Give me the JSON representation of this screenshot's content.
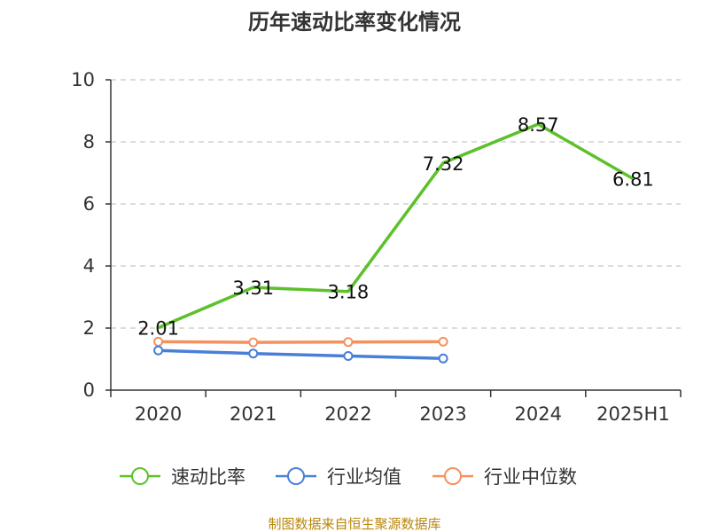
{
  "chart_data": {
    "type": "line",
    "title": "历年速动比率变化情况",
    "categories": [
      "2020",
      "2021",
      "2022",
      "2023",
      "2024",
      "2025H1"
    ],
    "ylim": [
      0,
      10
    ],
    "yticks": [
      0,
      2,
      4,
      6,
      8,
      10
    ],
    "grid": "horizontal-dashed",
    "legend_position": "bottom",
    "series": [
      {
        "name": "速动比率",
        "color": "#5cc12b",
        "values": [
          2.01,
          3.31,
          3.18,
          7.32,
          8.57,
          6.81
        ],
        "labels": [
          "2.01",
          "3.31",
          "3.18",
          "7.32",
          "8.57",
          "6.81"
        ]
      },
      {
        "name": "行业均值",
        "color": "#4a7fd8",
        "values": [
          1.28,
          1.18,
          1.1,
          1.02,
          null,
          null
        ]
      },
      {
        "name": "行业中位数",
        "color": "#f5915e",
        "values": [
          1.56,
          1.54,
          1.55,
          1.56,
          null,
          null
        ]
      }
    ]
  },
  "source": "制图数据来自恒生聚源数据库"
}
